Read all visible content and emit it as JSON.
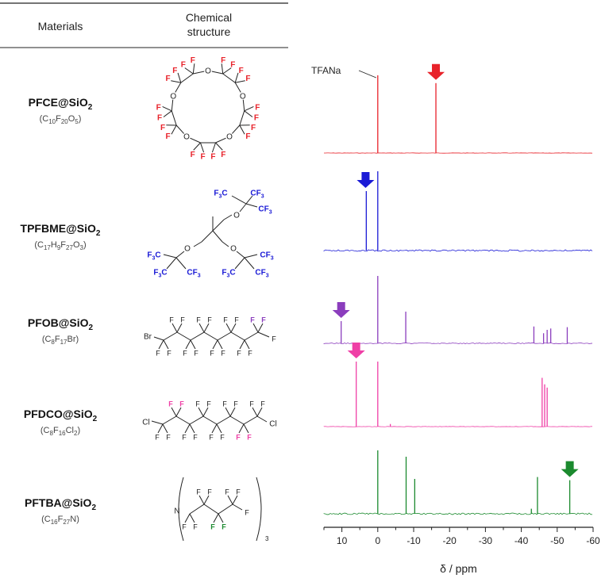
{
  "table": {
    "col_materials": "Materials",
    "col_structure_line1": "Chemical",
    "col_structure_line2": "structure",
    "rows": [
      {
        "name_main": "PFCE@SiO",
        "name_sub": "2",
        "formula": [
          [
            "(C",
            ""
          ],
          [
            "10",
            "sub"
          ],
          [
            "F",
            ""
          ],
          [
            "20",
            "sub"
          ],
          [
            "O",
            ""
          ],
          [
            "5",
            "sub"
          ],
          [
            ")",
            ""
          ]
        ],
        "color": "#e8222a"
      },
      {
        "name_main": "TPFBME@SiO",
        "name_sub": "2",
        "formula": [
          [
            "(C",
            ""
          ],
          [
            "17",
            "sub"
          ],
          [
            "H",
            ""
          ],
          [
            "9",
            "sub"
          ],
          [
            "F",
            ""
          ],
          [
            "27",
            "sub"
          ],
          [
            "O",
            ""
          ],
          [
            "3",
            "sub"
          ],
          [
            ")",
            ""
          ]
        ],
        "color": "#1b1bd6"
      },
      {
        "name_main": "PFOB@SiO",
        "name_sub": "2",
        "formula": [
          [
            "(C",
            ""
          ],
          [
            "8",
            "sub"
          ],
          [
            "F",
            ""
          ],
          [
            "17",
            "sub"
          ],
          [
            "Br)",
            ""
          ]
        ],
        "color": "#8b3dbd"
      },
      {
        "name_main": "PFDCO@SiO",
        "name_sub": "2",
        "formula": [
          [
            "(C",
            ""
          ],
          [
            "8",
            "sub"
          ],
          [
            "F",
            ""
          ],
          [
            "16",
            "sub"
          ],
          [
            "Cl",
            ""
          ],
          [
            "2",
            "sub"
          ],
          [
            ")",
            ""
          ]
        ],
        "color": "#ef3fa6"
      },
      {
        "name_main": "PFTBA@SiO",
        "name_sub": "2",
        "formula": [
          [
            "(C",
            ""
          ],
          [
            "16",
            "sub"
          ],
          [
            "F",
            ""
          ],
          [
            "27",
            "sub"
          ],
          [
            "N)",
            ""
          ]
        ],
        "color": "#1b8a2e"
      }
    ]
  },
  "structures": {
    "f": "F",
    "o": "O",
    "br": "Br",
    "cl": "Cl",
    "n": "N",
    "cf3": "CF",
    "three": "3",
    "f3c": "F",
    "c": "C"
  },
  "chart_data": {
    "type": "line",
    "xlabel": "δ / ppm",
    "x_reversed": true,
    "xlim": [
      15,
      -60
    ],
    "x_ticks": [
      10,
      0,
      -10,
      -20,
      -30,
      -40,
      -50,
      -60
    ],
    "reference_label": "TFANa",
    "reference_shift": 0,
    "series": [
      {
        "color": "#e8222a",
        "peaks": [
          {
            "x": 0,
            "h": 1.0
          },
          {
            "x": -16.2,
            "h": 0.9
          }
        ],
        "arrow_x": -16.2,
        "noise": 0.004
      },
      {
        "color": "#1b1bd6",
        "peaks": [
          {
            "x": 3.2,
            "h": 0.75
          },
          {
            "x": 0,
            "h": 1.0
          }
        ],
        "arrow_x": 3.4,
        "noise": 0.02
      },
      {
        "color": "#8b3dbd",
        "peaks": [
          {
            "x": 10.2,
            "h": 0.33
          },
          {
            "x": 0,
            "h": 1.0
          },
          {
            "x": -7.8,
            "h": 0.47
          },
          {
            "x": -43.5,
            "h": 0.25
          },
          {
            "x": -46.2,
            "h": 0.15
          },
          {
            "x": -47.2,
            "h": 0.2
          },
          {
            "x": -48.2,
            "h": 0.22
          },
          {
            "x": -52.8,
            "h": 0.24
          }
        ],
        "arrow_x": 10.2,
        "noise": 0.012
      },
      {
        "color": "#ef3fa6",
        "peaks": [
          {
            "x": 6.0,
            "h": 1.0
          },
          {
            "x": 0,
            "h": 1.0
          },
          {
            "x": -3.5,
            "h": 0.04
          },
          {
            "x": -45.8,
            "h": 0.75
          },
          {
            "x": -46.5,
            "h": 0.65
          },
          {
            "x": -47.2,
            "h": 0.6
          }
        ],
        "arrow_x": 6.0,
        "noise": 0.005
      },
      {
        "color": "#1b8a2e",
        "peaks": [
          {
            "x": 0,
            "h": 1.0
          },
          {
            "x": -7.9,
            "h": 0.9
          },
          {
            "x": -10.3,
            "h": 0.55
          },
          {
            "x": -42.8,
            "h": 0.08
          },
          {
            "x": -44.5,
            "h": 0.58
          },
          {
            "x": -53.5,
            "h": 0.53
          }
        ],
        "arrow_x": -53.5,
        "noise": 0.02
      }
    ]
  }
}
